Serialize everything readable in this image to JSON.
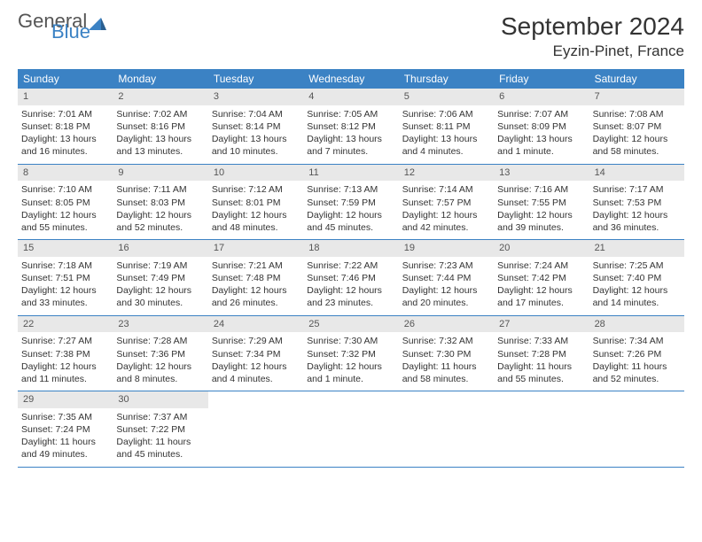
{
  "brand": {
    "main": "General",
    "sub": "Blue"
  },
  "header": {
    "month_title": "September 2024",
    "location": "Eyzin-Pinet, France"
  },
  "colors": {
    "header_bg": "#3b82c4",
    "header_text": "#ffffff",
    "daynum_bg": "#e8e8e8",
    "border": "#3b82c4",
    "logo_accent": "#3b82c4"
  },
  "weekdays": [
    "Sunday",
    "Monday",
    "Tuesday",
    "Wednesday",
    "Thursday",
    "Friday",
    "Saturday"
  ],
  "weeks": [
    [
      {
        "num": "1",
        "sunrise": "Sunrise: 7:01 AM",
        "sunset": "Sunset: 8:18 PM",
        "day1": "Daylight: 13 hours",
        "day2": "and 16 minutes."
      },
      {
        "num": "2",
        "sunrise": "Sunrise: 7:02 AM",
        "sunset": "Sunset: 8:16 PM",
        "day1": "Daylight: 13 hours",
        "day2": "and 13 minutes."
      },
      {
        "num": "3",
        "sunrise": "Sunrise: 7:04 AM",
        "sunset": "Sunset: 8:14 PM",
        "day1": "Daylight: 13 hours",
        "day2": "and 10 minutes."
      },
      {
        "num": "4",
        "sunrise": "Sunrise: 7:05 AM",
        "sunset": "Sunset: 8:12 PM",
        "day1": "Daylight: 13 hours",
        "day2": "and 7 minutes."
      },
      {
        "num": "5",
        "sunrise": "Sunrise: 7:06 AM",
        "sunset": "Sunset: 8:11 PM",
        "day1": "Daylight: 13 hours",
        "day2": "and 4 minutes."
      },
      {
        "num": "6",
        "sunrise": "Sunrise: 7:07 AM",
        "sunset": "Sunset: 8:09 PM",
        "day1": "Daylight: 13 hours",
        "day2": "and 1 minute."
      },
      {
        "num": "7",
        "sunrise": "Sunrise: 7:08 AM",
        "sunset": "Sunset: 8:07 PM",
        "day1": "Daylight: 12 hours",
        "day2": "and 58 minutes."
      }
    ],
    [
      {
        "num": "8",
        "sunrise": "Sunrise: 7:10 AM",
        "sunset": "Sunset: 8:05 PM",
        "day1": "Daylight: 12 hours",
        "day2": "and 55 minutes."
      },
      {
        "num": "9",
        "sunrise": "Sunrise: 7:11 AM",
        "sunset": "Sunset: 8:03 PM",
        "day1": "Daylight: 12 hours",
        "day2": "and 52 minutes."
      },
      {
        "num": "10",
        "sunrise": "Sunrise: 7:12 AM",
        "sunset": "Sunset: 8:01 PM",
        "day1": "Daylight: 12 hours",
        "day2": "and 48 minutes."
      },
      {
        "num": "11",
        "sunrise": "Sunrise: 7:13 AM",
        "sunset": "Sunset: 7:59 PM",
        "day1": "Daylight: 12 hours",
        "day2": "and 45 minutes."
      },
      {
        "num": "12",
        "sunrise": "Sunrise: 7:14 AM",
        "sunset": "Sunset: 7:57 PM",
        "day1": "Daylight: 12 hours",
        "day2": "and 42 minutes."
      },
      {
        "num": "13",
        "sunrise": "Sunrise: 7:16 AM",
        "sunset": "Sunset: 7:55 PM",
        "day1": "Daylight: 12 hours",
        "day2": "and 39 minutes."
      },
      {
        "num": "14",
        "sunrise": "Sunrise: 7:17 AM",
        "sunset": "Sunset: 7:53 PM",
        "day1": "Daylight: 12 hours",
        "day2": "and 36 minutes."
      }
    ],
    [
      {
        "num": "15",
        "sunrise": "Sunrise: 7:18 AM",
        "sunset": "Sunset: 7:51 PM",
        "day1": "Daylight: 12 hours",
        "day2": "and 33 minutes."
      },
      {
        "num": "16",
        "sunrise": "Sunrise: 7:19 AM",
        "sunset": "Sunset: 7:49 PM",
        "day1": "Daylight: 12 hours",
        "day2": "and 30 minutes."
      },
      {
        "num": "17",
        "sunrise": "Sunrise: 7:21 AM",
        "sunset": "Sunset: 7:48 PM",
        "day1": "Daylight: 12 hours",
        "day2": "and 26 minutes."
      },
      {
        "num": "18",
        "sunrise": "Sunrise: 7:22 AM",
        "sunset": "Sunset: 7:46 PM",
        "day1": "Daylight: 12 hours",
        "day2": "and 23 minutes."
      },
      {
        "num": "19",
        "sunrise": "Sunrise: 7:23 AM",
        "sunset": "Sunset: 7:44 PM",
        "day1": "Daylight: 12 hours",
        "day2": "and 20 minutes."
      },
      {
        "num": "20",
        "sunrise": "Sunrise: 7:24 AM",
        "sunset": "Sunset: 7:42 PM",
        "day1": "Daylight: 12 hours",
        "day2": "and 17 minutes."
      },
      {
        "num": "21",
        "sunrise": "Sunrise: 7:25 AM",
        "sunset": "Sunset: 7:40 PM",
        "day1": "Daylight: 12 hours",
        "day2": "and 14 minutes."
      }
    ],
    [
      {
        "num": "22",
        "sunrise": "Sunrise: 7:27 AM",
        "sunset": "Sunset: 7:38 PM",
        "day1": "Daylight: 12 hours",
        "day2": "and 11 minutes."
      },
      {
        "num": "23",
        "sunrise": "Sunrise: 7:28 AM",
        "sunset": "Sunset: 7:36 PM",
        "day1": "Daylight: 12 hours",
        "day2": "and 8 minutes."
      },
      {
        "num": "24",
        "sunrise": "Sunrise: 7:29 AM",
        "sunset": "Sunset: 7:34 PM",
        "day1": "Daylight: 12 hours",
        "day2": "and 4 minutes."
      },
      {
        "num": "25",
        "sunrise": "Sunrise: 7:30 AM",
        "sunset": "Sunset: 7:32 PM",
        "day1": "Daylight: 12 hours",
        "day2": "and 1 minute."
      },
      {
        "num": "26",
        "sunrise": "Sunrise: 7:32 AM",
        "sunset": "Sunset: 7:30 PM",
        "day1": "Daylight: 11 hours",
        "day2": "and 58 minutes."
      },
      {
        "num": "27",
        "sunrise": "Sunrise: 7:33 AM",
        "sunset": "Sunset: 7:28 PM",
        "day1": "Daylight: 11 hours",
        "day2": "and 55 minutes."
      },
      {
        "num": "28",
        "sunrise": "Sunrise: 7:34 AM",
        "sunset": "Sunset: 7:26 PM",
        "day1": "Daylight: 11 hours",
        "day2": "and 52 minutes."
      }
    ],
    [
      {
        "num": "29",
        "sunrise": "Sunrise: 7:35 AM",
        "sunset": "Sunset: 7:24 PM",
        "day1": "Daylight: 11 hours",
        "day2": "and 49 minutes."
      },
      {
        "num": "30",
        "sunrise": "Sunrise: 7:37 AM",
        "sunset": "Sunset: 7:22 PM",
        "day1": "Daylight: 11 hours",
        "day2": "and 45 minutes."
      },
      null,
      null,
      null,
      null,
      null
    ]
  ]
}
